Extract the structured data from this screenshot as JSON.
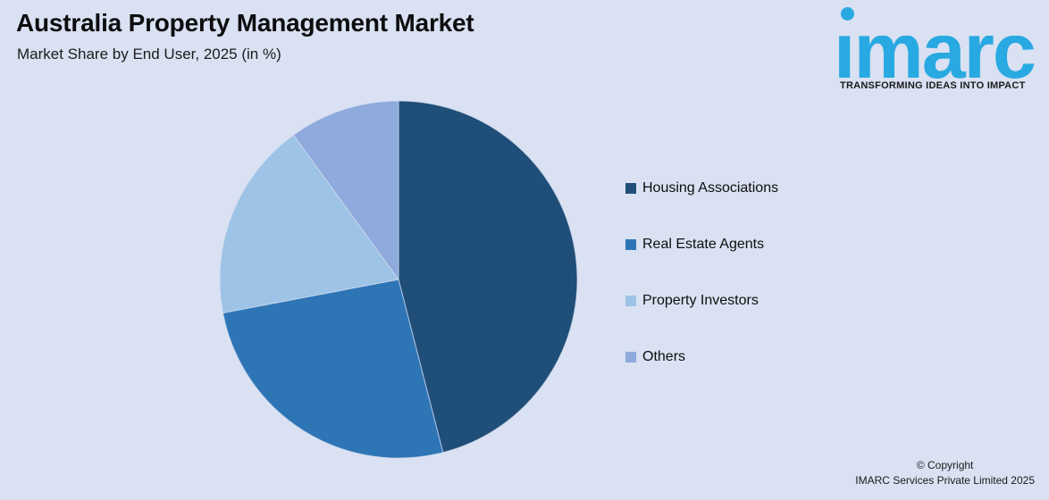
{
  "header": {
    "title": "Australia Property Management Market",
    "subtitle": "Market Share by End User, 2025 (in %)"
  },
  "logo": {
    "wordmark": "imarc",
    "tagline": "TRANSFORMING IDEAS INTO IMPACT",
    "brand_color": "#29A9E1"
  },
  "chart_data": {
    "type": "pie",
    "title": "Australia Property Management Market",
    "subtitle": "Market Share by End User, 2025 (in %)",
    "unit": "%",
    "year": "2025",
    "start_angle_deg": 0,
    "direction": "clockwise",
    "legend_position": "right",
    "data_labels_shown": false,
    "slices": [
      {
        "label": "Housing Associations",
        "value": 46,
        "color": "#1F4E79"
      },
      {
        "label": "Real Estate Agents",
        "value": 26,
        "color": "#2E75B6"
      },
      {
        "label": "Property Investors",
        "value": 18,
        "color": "#9DC3E6"
      },
      {
        "label": "Others",
        "value": 10,
        "color": "#8FAADC"
      }
    ]
  },
  "footer": {
    "copyright_line1": "© Copyright",
    "copyright_line2": "IMARC Services Private Limited 2025"
  },
  "colors": {
    "background": "#D9E1F2",
    "slice_divider": "#D9E1F2"
  }
}
